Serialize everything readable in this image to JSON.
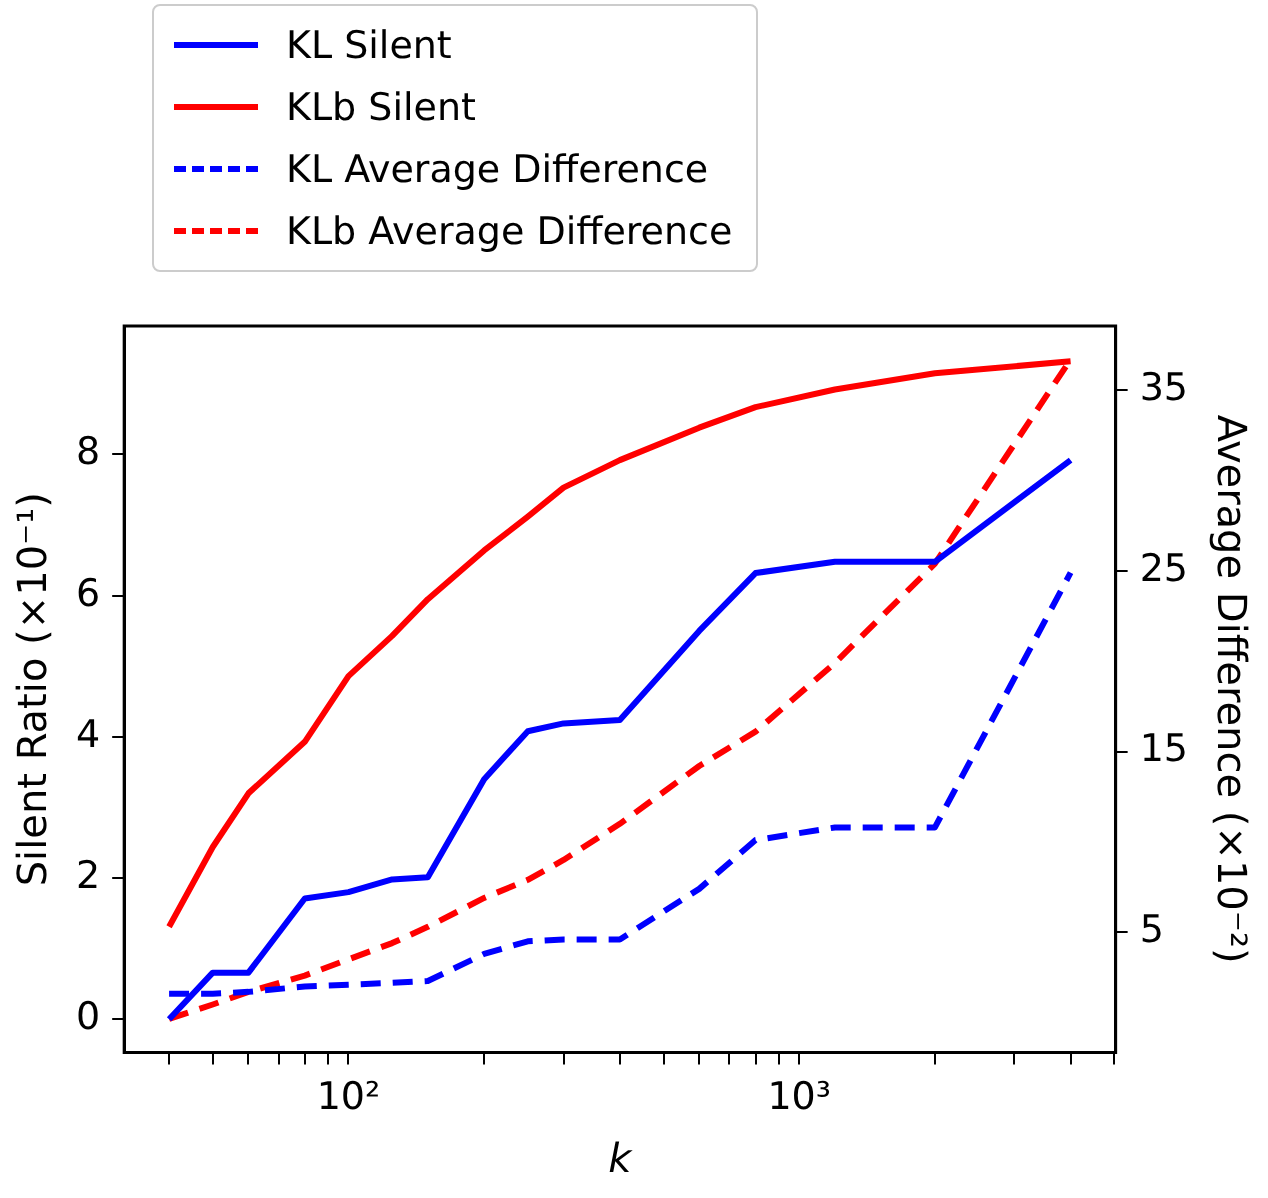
{
  "chart_data": {
    "type": "line",
    "xlabel": "k",
    "ylabel": "Silent Ratio (×10⁻¹)",
    "y2label": "Average Difference (×10⁻²)",
    "x": [
      40,
      50,
      60,
      80,
      100,
      125,
      150,
      200,
      250,
      300,
      400,
      600,
      800,
      1200,
      2000,
      4000
    ],
    "log": "x",
    "xlim": [
      31.8,
      5035
    ],
    "xticks": [
      {
        "value": 40,
        "label": null
      },
      {
        "value": 50,
        "label": null
      },
      {
        "value": 60,
        "label": null
      },
      {
        "value": 70,
        "label": null
      },
      {
        "value": 80,
        "label": null
      },
      {
        "value": 90,
        "label": null
      },
      {
        "value": 100,
        "label": "10²"
      },
      {
        "value": 200,
        "label": null
      },
      {
        "value": 300,
        "label": null
      },
      {
        "value": 400,
        "label": null
      },
      {
        "value": 500,
        "label": null
      },
      {
        "value": 600,
        "label": null
      },
      {
        "value": 700,
        "label": null
      },
      {
        "value": 800,
        "label": null
      },
      {
        "value": 900,
        "label": null
      },
      {
        "value": 1000,
        "label": "10³"
      },
      {
        "value": 2000,
        "label": null
      },
      {
        "value": 3000,
        "label": null
      },
      {
        "value": 4000,
        "label": null
      },
      {
        "value": 5000,
        "label": null
      }
    ],
    "ylim": [
      -0.47,
      9.82
    ],
    "yticks": [
      0,
      2,
      4,
      6,
      8
    ],
    "y2lim": [
      -1.65,
      38.55
    ],
    "y2ticks": [
      5,
      15,
      25,
      35
    ],
    "grid": false,
    "legend": "top left",
    "series": [
      {
        "name": "KL Silent",
        "color": "#0000ff",
        "line_style": "solid",
        "values": [
          0,
          0.66,
          0.66,
          1.71,
          1.8,
          1.98,
          2.01,
          3.4,
          4.08,
          4.19,
          4.24,
          5.5,
          6.32,
          6.48,
          6.48,
          7.92
        ]
      },
      {
        "name": "KLb Silent",
        "color": "#ff0000",
        "line_style": "solid",
        "values": [
          1.31,
          2.44,
          3.2,
          3.93,
          4.86,
          5.43,
          5.95,
          6.64,
          7.12,
          7.53,
          7.92,
          8.38,
          8.67,
          8.92,
          9.15,
          9.32
        ]
      },
      {
        "name": "KL Average Difference",
        "color": "#0000ff",
        "line_style": "dashed",
        "axis": "y2",
        "values": [
          1.6,
          1.6,
          1.7,
          2,
          2.1,
          2.2,
          2.3,
          3.8,
          4.5,
          4.6,
          4.6,
          7.4,
          10.1,
          10.8,
          10.8,
          24.9
        ]
      },
      {
        "name": "KLb Average Difference",
        "color": "#ff0000",
        "line_style": "dashed",
        "axis": "y2",
        "values": [
          0.2,
          1,
          1.7,
          2.6,
          3.5,
          4.4,
          5.3,
          6.9,
          7.9,
          9,
          11,
          14.2,
          16.1,
          19.9,
          25.4,
          36.7
        ]
      }
    ]
  }
}
